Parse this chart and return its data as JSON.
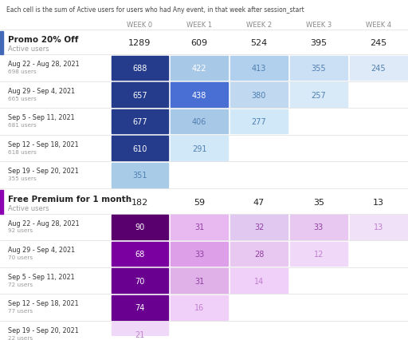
{
  "subtitle": "Each cell is the sum of Active users for users who had Any event, in that week after session_start",
  "weeks": [
    "WEEK 0",
    "WEEK 1",
    "WEEK 2",
    "WEEK 3",
    "WEEK 4"
  ],
  "cohort1": {
    "name": "Promo 20% Off",
    "sub": "Active users",
    "accent_color": "#4169b8",
    "totals": [
      1289,
      609,
      524,
      395,
      245
    ],
    "rows": [
      {
        "label": "Aug 22 - Aug 28, 2021",
        "users": "698 users",
        "values": [
          688,
          422,
          413,
          355,
          245
        ]
      },
      {
        "label": "Aug 29 - Sep 4, 2021",
        "users": "665 users",
        "values": [
          657,
          438,
          380,
          257,
          null
        ]
      },
      {
        "label": "Sep 5 - Sep 11, 2021",
        "users": "681 users",
        "values": [
          677,
          406,
          277,
          null,
          null
        ]
      },
      {
        "label": "Sep 12 - Sep 18, 2021",
        "users": "618 users",
        "values": [
          610,
          291,
          null,
          null,
          null
        ]
      },
      {
        "label": "Sep 19 - Sep 20, 2021",
        "users": "355 users",
        "values": [
          351,
          null,
          null,
          null,
          null
        ]
      }
    ],
    "cell_colors": [
      [
        "#253c8c",
        "#a8c8e8",
        "#b0d0ee",
        "#cce0f5",
        "#deeaf8"
      ],
      [
        "#253c8c",
        "#4a6fd4",
        "#c0d8f0",
        "#d8eaf8",
        null
      ],
      [
        "#253c8c",
        "#a8c8e8",
        "#d0e8f8",
        null,
        null
      ],
      [
        "#253c8c",
        "#d0e8f8",
        null,
        null,
        null
      ],
      [
        "#a8cce8",
        null,
        null,
        null,
        null
      ]
    ],
    "text_colors": [
      [
        "#ffffff",
        "#ffffff",
        "#5080b0",
        "#5080b0",
        "#5080b0"
      ],
      [
        "#ffffff",
        "#ffffff",
        "#5080b0",
        "#5080b0",
        null
      ],
      [
        "#ffffff",
        "#5080b0",
        "#5080b0",
        null,
        null
      ],
      [
        "#ffffff",
        "#5080b0",
        null,
        null,
        null
      ],
      [
        "#5080b0",
        null,
        null,
        null,
        null
      ]
    ]
  },
  "cohort2": {
    "name": "Free Premium for 1 month",
    "sub": "Active users",
    "accent_color": "#8b00b0",
    "totals": [
      182,
      59,
      47,
      35,
      13
    ],
    "rows": [
      {
        "label": "Aug 22 - Aug 28, 2021",
        "users": "92 users",
        "values": [
          90,
          31,
          32,
          33,
          13
        ]
      },
      {
        "label": "Aug 29 - Sep 4, 2021",
        "users": "70 users",
        "values": [
          68,
          33,
          28,
          12,
          null
        ]
      },
      {
        "label": "Sep 5 - Sep 11, 2021",
        "users": "72 users",
        "values": [
          70,
          31,
          14,
          null,
          null
        ]
      },
      {
        "label": "Sep 12 - Sep 18, 2021",
        "users": "77 users",
        "values": [
          74,
          16,
          null,
          null,
          null
        ]
      },
      {
        "label": "Sep 19 - Sep 20, 2021",
        "users": "22 users",
        "values": [
          21,
          null,
          null,
          null,
          null
        ]
      }
    ],
    "cell_colors": [
      [
        "#5a006e",
        "#e8b8f0",
        "#e0c8f0",
        "#e8c8f0",
        "#f0e0f8"
      ],
      [
        "#7a00a0",
        "#dda0e8",
        "#e8c8f0",
        "#f0d8f8",
        null
      ],
      [
        "#6a0090",
        "#e0b0e8",
        "#f0d0f8",
        null,
        null
      ],
      [
        "#6a0090",
        "#f0d0f8",
        null,
        null,
        null
      ],
      [
        "#f0d8f8",
        null,
        null,
        null,
        null
      ]
    ],
    "text_colors": [
      [
        "#ffffff",
        "#9040a0",
        "#9040a0",
        "#9040a0",
        "#c080d0"
      ],
      [
        "#ffffff",
        "#9040a0",
        "#9040a0",
        "#c080d0",
        null
      ],
      [
        "#ffffff",
        "#9040a0",
        "#c080d0",
        null,
        null
      ],
      [
        "#ffffff",
        "#c080d0",
        null,
        null,
        null
      ],
      [
        "#c080d0",
        null,
        null,
        null,
        null
      ]
    ]
  },
  "bg_color": "#ffffff",
  "header_color": "#888888",
  "label_color": "#333333",
  "sub_color": "#999999"
}
